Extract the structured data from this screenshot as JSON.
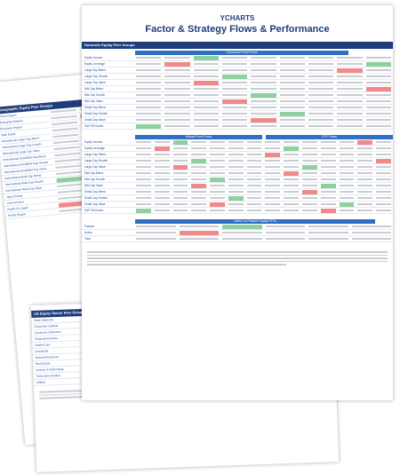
{
  "front": {
    "logo": "YCHARTS",
    "title": "Factor & Strategy Flows & Performance",
    "section": "Domestic Equity Peer Groups",
    "combined": {
      "title": "Combined Fund Flows",
      "rows": [
        "Equity Income",
        "Equity Leverage",
        "Large Cap Blend",
        "Large Cap Growth",
        "Large Cap Value",
        "Mid-Cap Blend",
        "Mid-Cap Growth",
        "Mid-Cap Value",
        "Small Cap Blend",
        "Small Cap Growth",
        "Small Cap Value",
        "S&P 500 Index"
      ]
    },
    "mutual": {
      "title": "Mutual Fund Flows",
      "rows": [
        "Equity Income",
        "Equity Leverage",
        "Large Cap Blend",
        "Large Cap Growth",
        "Large Cap Value",
        "Mid-Cap Blend",
        "Mid-Cap Growth",
        "Mid-Cap Value",
        "Small Cap Blend",
        "Small Cap Growth",
        "Small Cap Value",
        "S&P 500 Index"
      ]
    },
    "etf": {
      "title": "ETF Flows"
    },
    "active": {
      "title": "Active vs Passive Equity ETFs",
      "rows": [
        "Passive",
        "Active",
        "Total"
      ]
    }
  },
  "geo": {
    "title": "Geographic Equity Peer Groups",
    "rows": [
      "China Region",
      "Emerging Markets",
      "European Region",
      "India Equity",
      "International Large Cap Blend",
      "International Large Cap Growth",
      "International Large Cap Value",
      "International Small/Mid Cap Blend",
      "International Small/Mid Cap Growth",
      "International Small/Mid Cap Value",
      "International Multi-Cap Blend",
      "International Multi-Cap Growth",
      "International Multi-Cap Value",
      "Japan Equity",
      "Latin America",
      "Pacific Ex-Japan",
      "Pacific Region"
    ]
  },
  "sector": {
    "title": "US Equity Sector Peer Groups",
    "rows": [
      "Basic Materials",
      "Consumer Cyclical",
      "Consumer Defensive",
      "Financial Services",
      "Health Care",
      "Industrials",
      "Natural Resources",
      "Real Estate",
      "Science & Technology",
      "Telecommunication",
      "Utilities"
    ]
  }
}
